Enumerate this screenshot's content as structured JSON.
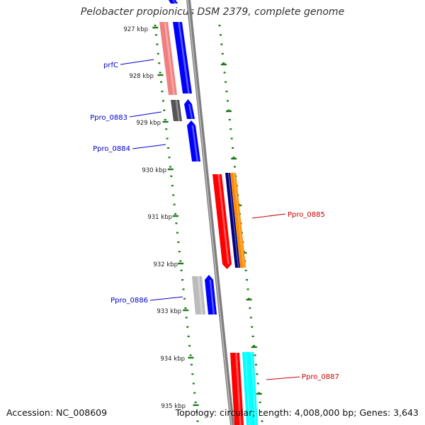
{
  "title": "Pelobacter propionicus DSM 2379, complete genome",
  "footer": {
    "accession_label": "Accession:",
    "accession": "NC_008609",
    "topology_label": "Topology:",
    "topology": "circular;",
    "length_label": "Length:",
    "length": "4,008,000 bp;",
    "genes_label": "Genes:",
    "genes": "3,643"
  },
  "ruler": [
    {
      "label": "927 kbp"
    },
    {
      "label": "928 kbp"
    },
    {
      "label": "929 kbp"
    },
    {
      "label": "930 kbp"
    },
    {
      "label": "931 kbp"
    },
    {
      "label": "932 kbp"
    },
    {
      "label": "933 kbp"
    },
    {
      "label": "934 kbp"
    },
    {
      "label": "935 kbp"
    }
  ],
  "gene_labels": [
    {
      "name": "prfC",
      "color": "#0000cc"
    },
    {
      "name": "Ppro_0883",
      "color": "#0000cc"
    },
    {
      "name": "Ppro_0884",
      "color": "#0000cc"
    },
    {
      "name": "Ppro_0885",
      "color": "#cc0000"
    },
    {
      "name": "Ppro_0886",
      "color": "#0000cc"
    },
    {
      "name": "Ppro_0887",
      "color": "#cc0000"
    }
  ],
  "colors": {
    "tick_green": "#1a7a1a",
    "backbone": "#7f7f7f",
    "blue_gene": "#0000ff",
    "red_gene": "#ff0000",
    "cyan_gene": "#00ffff",
    "orange_gene": "#ff8c00",
    "navy_gene": "#000080",
    "pink_gene": "#f08080",
    "dark_gray_gene": "#555555",
    "light_gray_gene": "#bbbbbb"
  }
}
